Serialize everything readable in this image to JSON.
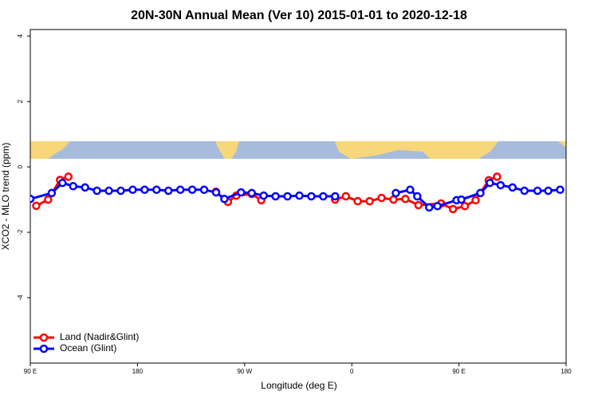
{
  "chart_data": {
    "type": "line",
    "title": "20N-30N Annual Mean (Ver 10)   2015-01-01 to 2020-12-18",
    "x_label": "Longitude (deg E)",
    "y_label": "XCO2 - MLO trend (ppm)",
    "xlim": [
      90,
      540
    ],
    "ylim": [
      -6,
      4.2
    ],
    "xticks": [
      {
        "value": 90,
        "label": "90 E"
      },
      180,
      {
        "value": 270,
        "label": "90 W"
      },
      {
        "value": 360,
        "label": "0"
      },
      {
        "value": 450,
        "label": "90 E"
      },
      {
        "value": 540,
        "label": "180"
      }
    ],
    "yticks": [
      4,
      2,
      0,
      -2,
      -4
    ],
    "legend": "bottom-left",
    "series": [
      {
        "name": "Land (Nadir&Glint)",
        "color": "#ff0000",
        "x": [
          95,
          105,
          115,
          122,
          180,
          246,
          256,
          263,
          276,
          284,
          310,
          346,
          355,
          365,
          375,
          385,
          395,
          405,
          416,
          435,
          445,
          455,
          464,
          475,
          482
        ],
        "values": [
          -1.19,
          -1.0,
          -0.4,
          -0.3,
          null,
          -0.76,
          -1.07,
          -0.88,
          -0.83,
          -1.02,
          null,
          -1.0,
          -0.9,
          -1.05,
          -1.05,
          -0.95,
          -1.0,
          -0.98,
          -1.17,
          -1.12,
          -1.29,
          -1.2,
          -1.02,
          -0.41,
          -0.3
        ]
      },
      {
        "name": "Ocean (Glint)",
        "color": "#0000ff",
        "x": [
          90,
          108,
          117,
          126,
          136,
          146,
          156,
          166,
          176,
          186,
          196,
          206,
          216,
          226,
          236,
          246,
          253,
          267,
          276,
          286,
          296,
          306,
          316,
          326,
          336,
          346,
          370,
          397,
          409,
          415,
          425,
          432,
          448,
          452,
          468,
          476,
          485,
          495,
          505,
          516,
          525,
          535
        ],
        "values": [
          -0.98,
          -0.8,
          -0.49,
          -0.59,
          -0.63,
          -0.73,
          -0.73,
          -0.73,
          -0.7,
          -0.7,
          -0.7,
          -0.73,
          -0.7,
          -0.7,
          -0.7,
          -0.78,
          -0.98,
          -0.78,
          -0.8,
          -0.88,
          -0.9,
          -0.9,
          -0.88,
          -0.9,
          -0.9,
          -0.9,
          null,
          -0.8,
          -0.7,
          -0.9,
          -1.24,
          -1.2,
          -1.02,
          -1.0,
          -0.8,
          -0.49,
          -0.56,
          -0.63,
          -0.73,
          -0.73,
          -0.73,
          -0.7
        ]
      }
    ]
  }
}
